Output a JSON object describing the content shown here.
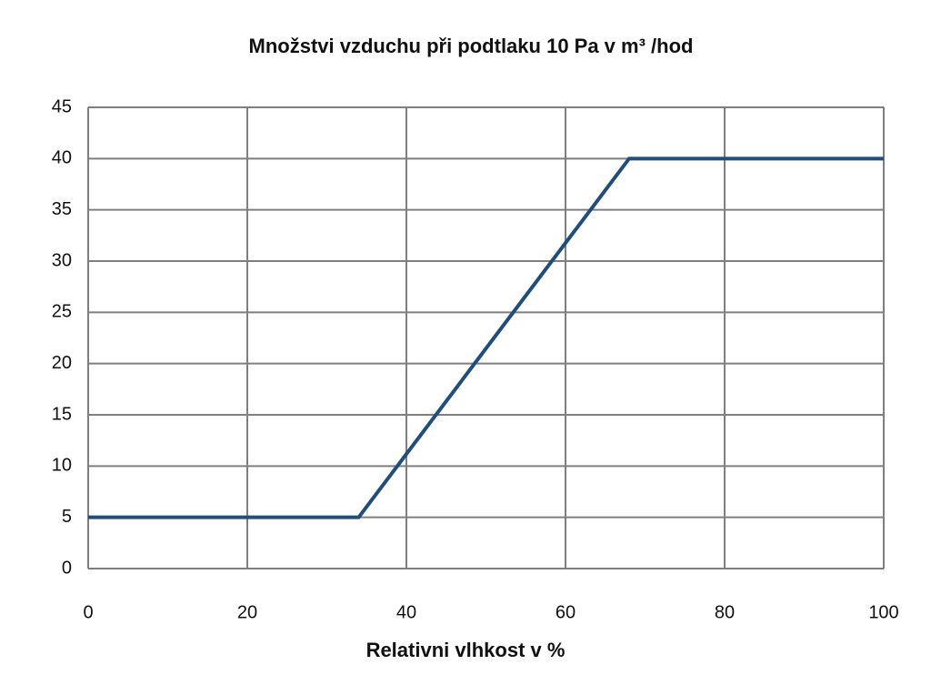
{
  "chart_data": {
    "type": "line",
    "title": "Množstvi vzduchu při podtlaku 10 Pa v m³ /hod",
    "x_label": "Relativni vlhkost v %",
    "x": [
      0,
      34,
      68,
      100
    ],
    "values": [
      5,
      5,
      40,
      40
    ],
    "color": "#1f4e7d",
    "xlim": [
      0,
      100
    ],
    "xticks": [
      0,
      20,
      40,
      60,
      80,
      100
    ],
    "ylim": [
      0,
      45
    ],
    "yticks": [
      0,
      5,
      10,
      15,
      20,
      25,
      30,
      35,
      40,
      45
    ],
    "grid": true
  }
}
